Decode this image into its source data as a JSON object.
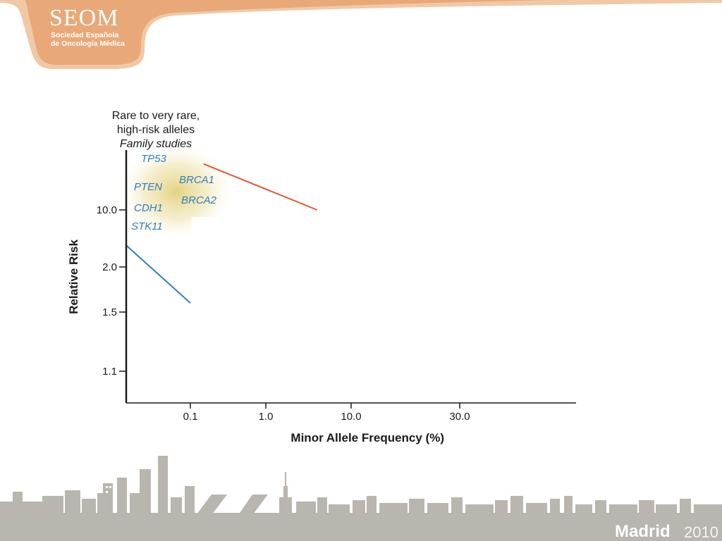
{
  "header": {
    "logo_title": "SEOM",
    "logo_line1": "Sociedad Española",
    "logo_line2": "de Oncología Médica",
    "banner_color": "#E8A878"
  },
  "footer": {
    "city": "Madrid",
    "year": "2010",
    "skyline_color": "#B8B6AE"
  },
  "chart_data": {
    "type": "line",
    "title": "",
    "xlabel": "Minor Allele Frequency (%)",
    "ylabel": "Relative Risk",
    "x_ticks": [
      "0.1",
      "1.0",
      "10.0",
      "30.0"
    ],
    "y_ticks": [
      "10.0",
      "2.0",
      "1.5",
      "1.1"
    ],
    "annotations": [
      "Rare to very rare,",
      "high-risk alleles",
      "Family studies"
    ],
    "gene_labels": [
      "TP53",
      "PTEN",
      "BRCA1",
      "BRCA2",
      "CDH1",
      "STK11"
    ],
    "series": [
      {
        "color": "#E8552E",
        "points": [
          [
            0.15,
            30.0
          ],
          [
            4.0,
            10.0
          ]
        ]
      },
      {
        "color": "#2F7DC2",
        "points": [
          [
            0.015,
            5.0
          ],
          [
            0.1,
            1.6
          ]
        ]
      }
    ],
    "highlight_color": "#E6D88A",
    "gene_label_color": "#2F7DC2",
    "grid": false
  }
}
